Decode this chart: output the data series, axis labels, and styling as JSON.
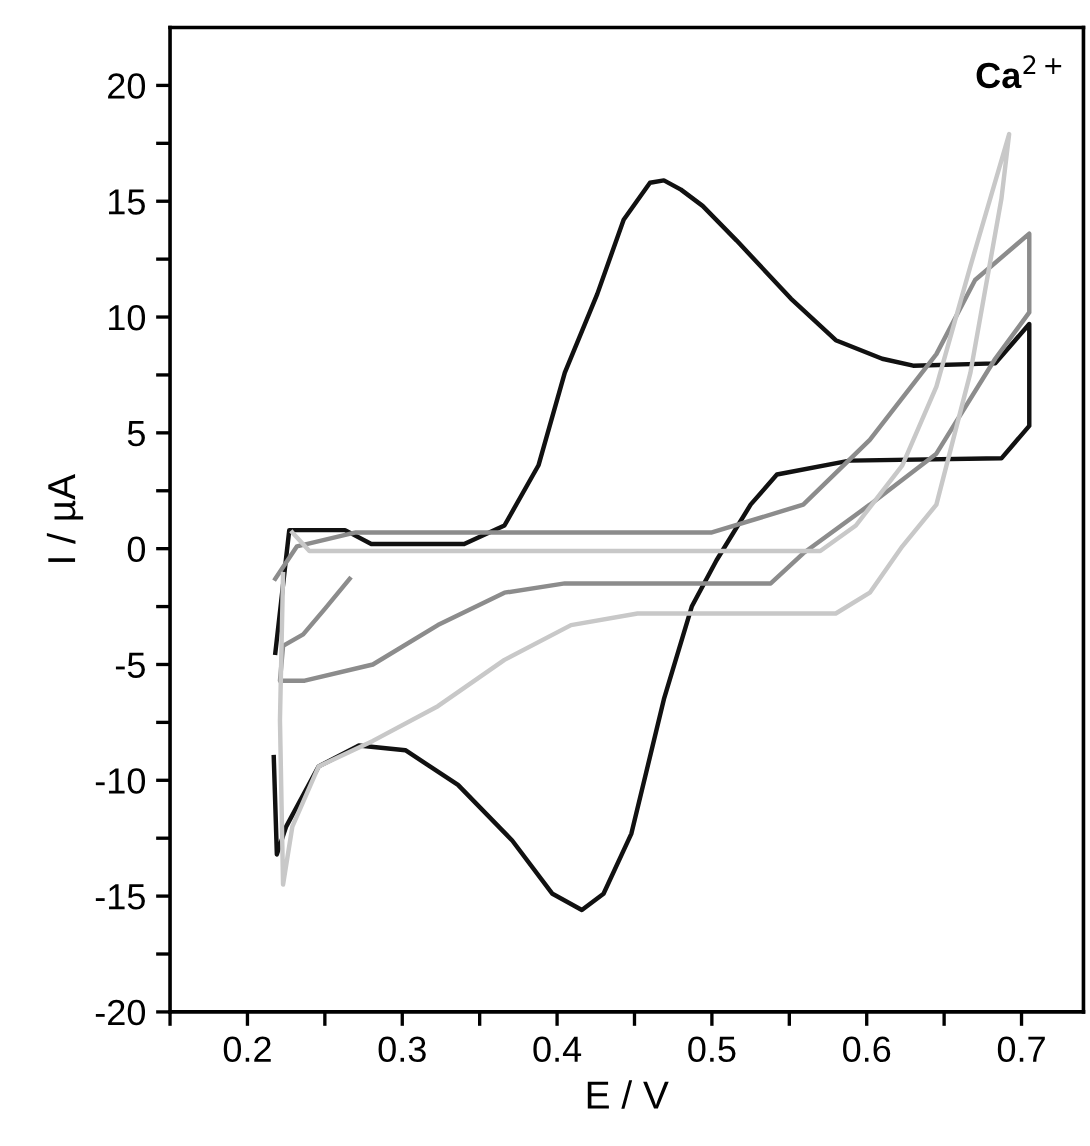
{
  "chart_data": {
    "type": "line",
    "xlabel": "E / V",
    "ylabel": "I / µA",
    "annotations": [
      "Ca$^{2+}$"
    ],
    "xlim": [
      0.15,
      0.74
    ],
    "ylim": [
      -20,
      22.5
    ],
    "xticks": [
      {
        "value": 0.15,
        "label": null
      },
      0.2,
      {
        "value": 0.25,
        "label": null
      },
      0.3,
      {
        "value": 0.35,
        "label": null
      },
      0.4,
      {
        "value": 0.45,
        "label": null
      },
      0.5,
      {
        "value": 0.55,
        "label": null
      },
      0.6,
      {
        "value": 0.65,
        "label": null
      },
      0.7
    ],
    "yticks": [
      -20,
      {
        "value": -17.5,
        "label": null
      },
      -15,
      {
        "value": -12.5,
        "label": null
      },
      -10,
      {
        "value": -7.5,
        "label": null
      },
      -5,
      {
        "value": -2.5,
        "label": null
      },
      0,
      {
        "value": 2.5,
        "label": null
      },
      5,
      {
        "value": 7.5,
        "label": null
      },
      10,
      {
        "value": 12.5,
        "label": null
      },
      15,
      {
        "value": 17.5,
        "label": null
      },
      20
    ],
    "grid": false,
    "legend": false,
    "line_style": "solid",
    "marker": "none",
    "series": [
      {
        "color": "#111111",
        "x": [
          0.218,
          0.227,
          0.263,
          0.28,
          0.34,
          0.366,
          0.388,
          0.405,
          0.426,
          0.443,
          0.46,
          0.469,
          0.48,
          0.494,
          0.516,
          0.551,
          0.58,
          0.61,
          0.63,
          0.683,
          0.705,
          0.705,
          0.687,
          0.589,
          0.542,
          0.525,
          0.503,
          0.487,
          0.469,
          0.448,
          0.43,
          0.416,
          0.397,
          0.371,
          0.336,
          0.302,
          0.272,
          0.246,
          0.225,
          0.219,
          0.217
        ],
        "values": [
          -4.5,
          0.8,
          0.8,
          0.2,
          0.2,
          1.0,
          3.6,
          7.6,
          11,
          14.2,
          15.8,
          15.9,
          15.5,
          14.8,
          13.3,
          10.8,
          9,
          8.2,
          7.9,
          8.0,
          9.7,
          5.3,
          3.9,
          3.8,
          3.2,
          1.9,
          -0.5,
          -2.5,
          -6.5,
          -12.3,
          -14.9,
          -15.6,
          -14.9,
          -12.6,
          -10.2,
          -8.7,
          -8.5,
          -9.4,
          -12,
          -13.2,
          -9
        ]
      },
      {
        "color": "#8c8c8c",
        "x": [
          0.218,
          0.232,
          0.27,
          0.5,
          0.559,
          0.602,
          0.645,
          0.67,
          0.705,
          0.705,
          0.683,
          0.645,
          0.602,
          0.559,
          0.538,
          0.474,
          0.405,
          0.366,
          0.323,
          0.281,
          0.237,
          0.221,
          0.223,
          0.236,
          0.25,
          0.266
        ],
        "values": [
          -1.3,
          0.1,
          0.7,
          0.7,
          1.9,
          4.7,
          8.4,
          11.6,
          13.6,
          10.2,
          8.2,
          4.1,
          1.9,
          -0.2,
          -1.5,
          -1.5,
          -1.5,
          -1.9,
          -3.3,
          -5,
          -5.7,
          -5.7,
          -4.2,
          -3.7,
          -2.6,
          -1.3
        ]
      },
      {
        "color": "#c8c8c8",
        "x": [
          0.229,
          0.24,
          0.57,
          0.593,
          0.623,
          0.645,
          0.667,
          0.692,
          0.687,
          0.667,
          0.645,
          0.623,
          0.602,
          0.58,
          0.516,
          0.452,
          0.409,
          0.366,
          0.323,
          0.281,
          0.246,
          0.229,
          0.223,
          0.221,
          0.223
        ],
        "values": [
          0.7,
          -0.1,
          -0.1,
          1.0,
          3.6,
          7,
          12.2,
          17.9,
          15.1,
          7.6,
          1.9,
          0.1,
          -1.9,
          -2.8,
          -2.8,
          -2.8,
          -3.3,
          -4.8,
          -6.8,
          -8.3,
          -9.4,
          -12,
          -14.5,
          -7.4,
          -1.1
        ]
      }
    ]
  }
}
